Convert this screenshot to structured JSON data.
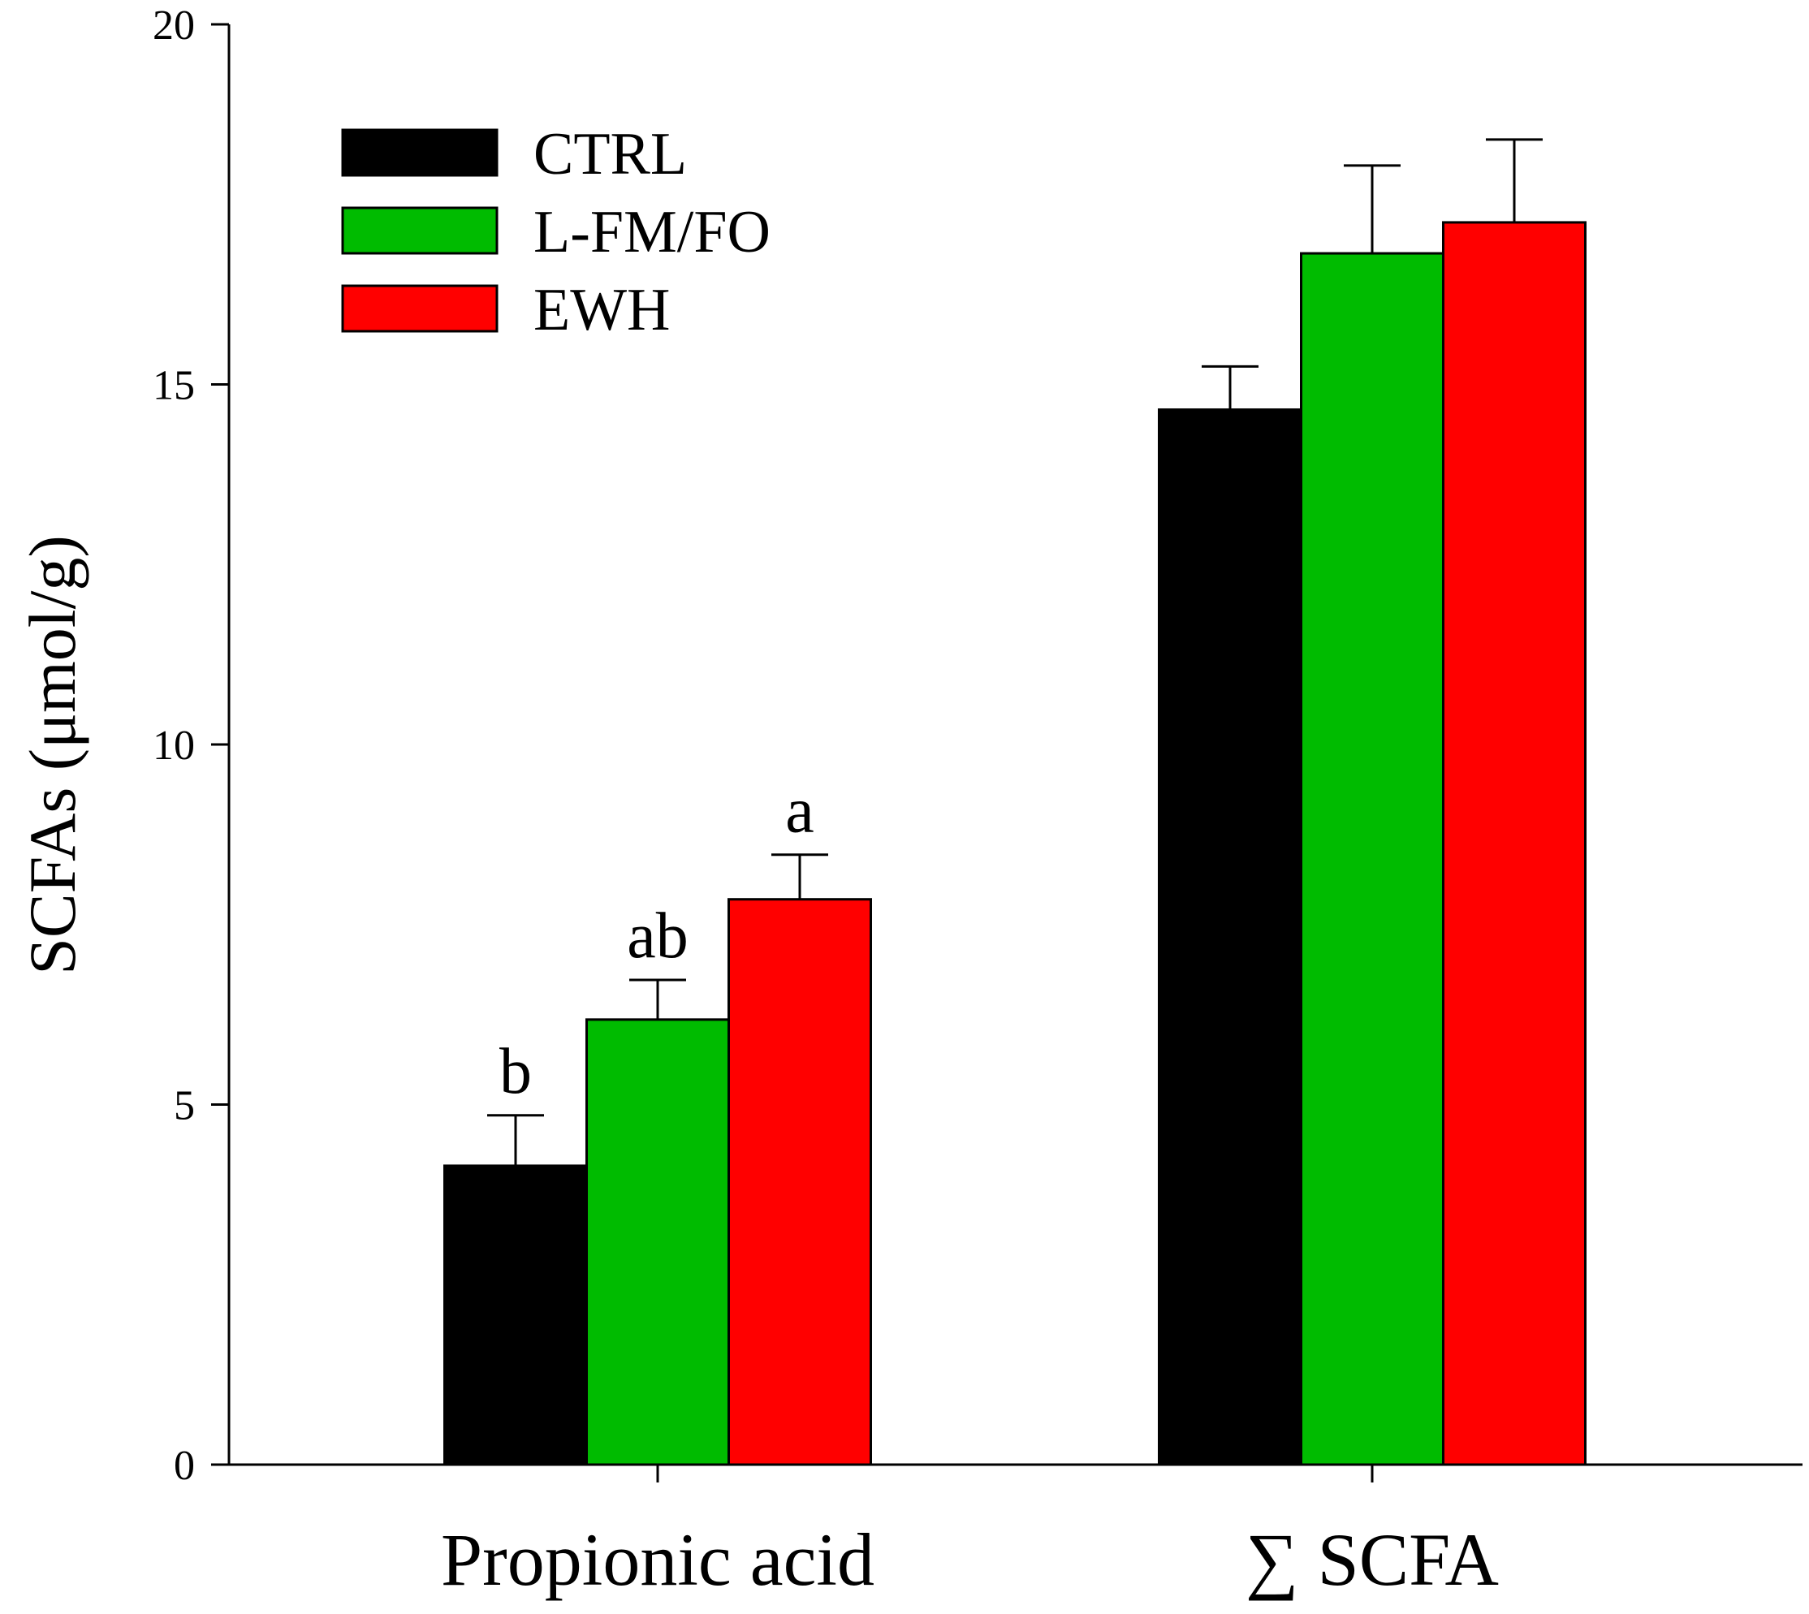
{
  "chart_data": {
    "type": "bar",
    "title": "",
    "xlabel": "",
    "ylabel": "SCFAs (μmol/g)",
    "ylim": [
      0,
      20
    ],
    "yticks": [
      "0",
      "5",
      "10",
      "15",
      "20"
    ],
    "categories": [
      "Propionic acid",
      "∑ SCFA"
    ],
    "series": [
      {
        "name": "CTRL",
        "color": "#000000",
        "values": [
          4.15,
          14.65
        ],
        "errors": [
          0.7,
          0.6
        ]
      },
      {
        "name": "L-FM/FO",
        "color": "#00bb00",
        "values": [
          6.18,
          16.82
        ],
        "errors": [
          0.55,
          1.22
        ]
      },
      {
        "name": "EWH",
        "color": "#ff0000",
        "values": [
          7.85,
          17.25
        ],
        "errors": [
          0.62,
          1.15
        ]
      }
    ],
    "annotations": [
      [
        "b",
        "",
        ""
      ],
      [
        "ab",
        "",
        ""
      ],
      [
        "a",
        "",
        ""
      ]
    ],
    "legend_position": "top-left"
  }
}
